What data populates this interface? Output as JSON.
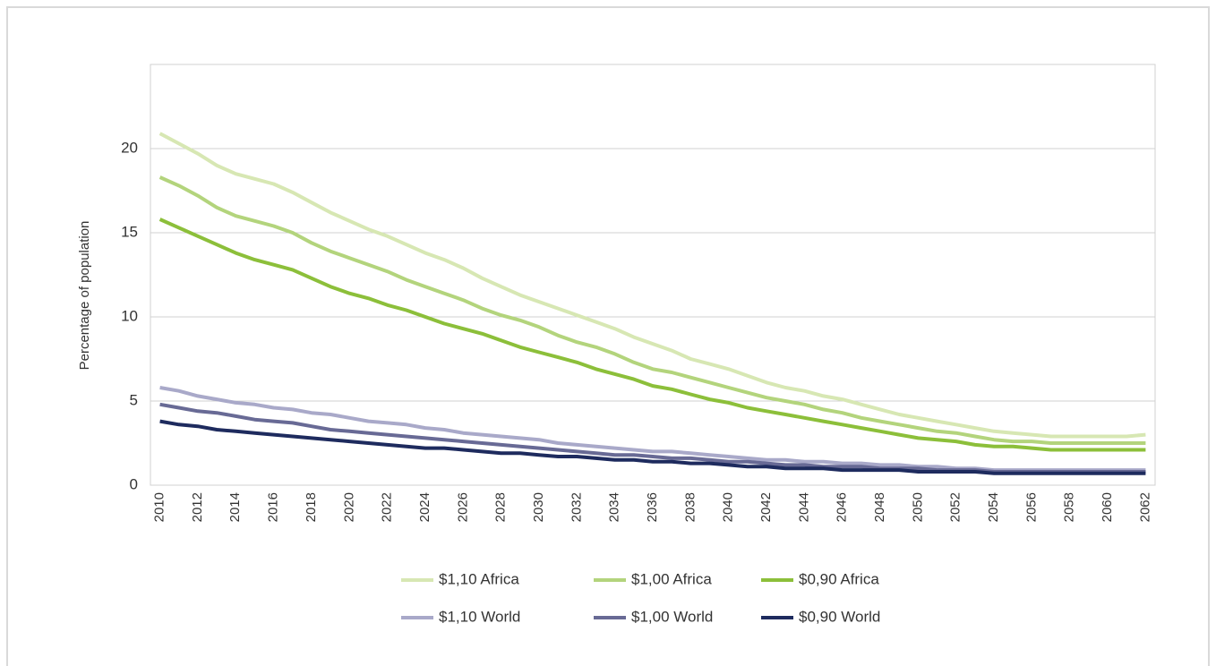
{
  "chart_data": {
    "type": "line",
    "y_label": "Percentage of population",
    "x": [
      2010,
      2011,
      2012,
      2013,
      2014,
      2015,
      2016,
      2017,
      2018,
      2019,
      2020,
      2021,
      2022,
      2023,
      2024,
      2025,
      2026,
      2027,
      2028,
      2029,
      2030,
      2031,
      2032,
      2033,
      2034,
      2035,
      2036,
      2037,
      2038,
      2039,
      2040,
      2041,
      2042,
      2043,
      2044,
      2045,
      2046,
      2047,
      2048,
      2049,
      2050,
      2051,
      2052,
      2053,
      2054,
      2055,
      2056,
      2057,
      2058,
      2059,
      2060,
      2061,
      2062
    ],
    "xlim": [
      2009.5,
      2062.5
    ],
    "xticks": [
      2010,
      2012,
      2014,
      2016,
      2018,
      2020,
      2022,
      2024,
      2026,
      2028,
      2030,
      2032,
      2034,
      2036,
      2038,
      2040,
      2042,
      2044,
      2046,
      2048,
      2050,
      2052,
      2054,
      2056,
      2058,
      2060,
      2062
    ],
    "ylim": [
      0,
      25
    ],
    "yticks": [
      0,
      5,
      10,
      15,
      20
    ],
    "grid": true,
    "legend": "bottom",
    "series": [
      {
        "name": "$1,10 Africa",
        "color": "#d7e7b3",
        "values": [
          20.9,
          20.3,
          19.7,
          19.0,
          18.5,
          18.2,
          17.9,
          17.4,
          16.8,
          16.2,
          15.7,
          15.2,
          14.8,
          14.3,
          13.8,
          13.4,
          12.9,
          12.3,
          11.8,
          11.3,
          10.9,
          10.5,
          10.1,
          9.7,
          9.3,
          8.8,
          8.4,
          8.0,
          7.5,
          7.2,
          6.9,
          6.5,
          6.1,
          5.8,
          5.6,
          5.3,
          5.1,
          4.8,
          4.5,
          4.2,
          4.0,
          3.8,
          3.6,
          3.4,
          3.2,
          3.1,
          3.0,
          2.9,
          2.9,
          2.9,
          2.9,
          2.9,
          3.0
        ]
      },
      {
        "name": "$1,00 Africa",
        "color": "#b3d47c",
        "values": [
          18.3,
          17.8,
          17.2,
          16.5,
          16.0,
          15.7,
          15.4,
          15.0,
          14.4,
          13.9,
          13.5,
          13.1,
          12.7,
          12.2,
          11.8,
          11.4,
          11.0,
          10.5,
          10.1,
          9.8,
          9.4,
          8.9,
          8.5,
          8.2,
          7.8,
          7.3,
          6.9,
          6.7,
          6.4,
          6.1,
          5.8,
          5.5,
          5.2,
          5.0,
          4.8,
          4.5,
          4.3,
          4.0,
          3.8,
          3.6,
          3.4,
          3.2,
          3.1,
          2.9,
          2.7,
          2.6,
          2.6,
          2.5,
          2.5,
          2.5,
          2.5,
          2.5,
          2.5
        ]
      },
      {
        "name": "$0,90 Africa",
        "color": "#8cbf3a",
        "values": [
          15.8,
          15.3,
          14.8,
          14.3,
          13.8,
          13.4,
          13.1,
          12.8,
          12.3,
          11.8,
          11.4,
          11.1,
          10.7,
          10.4,
          10.0,
          9.6,
          9.3,
          9.0,
          8.6,
          8.2,
          7.9,
          7.6,
          7.3,
          6.9,
          6.6,
          6.3,
          5.9,
          5.7,
          5.4,
          5.1,
          4.9,
          4.6,
          4.4,
          4.2,
          4.0,
          3.8,
          3.6,
          3.4,
          3.2,
          3.0,
          2.8,
          2.7,
          2.6,
          2.4,
          2.3,
          2.3,
          2.2,
          2.1,
          2.1,
          2.1,
          2.1,
          2.1,
          2.1
        ]
      },
      {
        "name": "$1,10 World",
        "color": "#a9a9c9",
        "values": [
          5.8,
          5.6,
          5.3,
          5.1,
          4.9,
          4.8,
          4.6,
          4.5,
          4.3,
          4.2,
          4.0,
          3.8,
          3.7,
          3.6,
          3.4,
          3.3,
          3.1,
          3.0,
          2.9,
          2.8,
          2.7,
          2.5,
          2.4,
          2.3,
          2.2,
          2.1,
          2.0,
          2.0,
          1.9,
          1.8,
          1.7,
          1.6,
          1.5,
          1.5,
          1.4,
          1.4,
          1.3,
          1.3,
          1.2,
          1.2,
          1.1,
          1.1,
          1.0,
          1.0,
          0.9,
          0.9,
          0.9,
          0.9,
          0.9,
          0.9,
          0.9,
          0.9,
          0.9
        ]
      },
      {
        "name": "$1,00 World",
        "color": "#686a95",
        "values": [
          4.8,
          4.6,
          4.4,
          4.3,
          4.1,
          3.9,
          3.8,
          3.7,
          3.5,
          3.3,
          3.2,
          3.1,
          3.0,
          2.9,
          2.8,
          2.7,
          2.6,
          2.5,
          2.4,
          2.3,
          2.2,
          2.1,
          2.0,
          1.9,
          1.8,
          1.8,
          1.7,
          1.6,
          1.6,
          1.5,
          1.4,
          1.4,
          1.3,
          1.2,
          1.2,
          1.1,
          1.1,
          1.1,
          1.0,
          1.0,
          1.0,
          0.9,
          0.9,
          0.9,
          0.8,
          0.8,
          0.8,
          0.8,
          0.8,
          0.8,
          0.8,
          0.8,
          0.8
        ]
      },
      {
        "name": "$0,90 World",
        "color": "#1e2b5e",
        "values": [
          3.8,
          3.6,
          3.5,
          3.3,
          3.2,
          3.1,
          3.0,
          2.9,
          2.8,
          2.7,
          2.6,
          2.5,
          2.4,
          2.3,
          2.2,
          2.2,
          2.1,
          2.0,
          1.9,
          1.9,
          1.8,
          1.7,
          1.7,
          1.6,
          1.5,
          1.5,
          1.4,
          1.4,
          1.3,
          1.3,
          1.2,
          1.1,
          1.1,
          1.0,
          1.0,
          1.0,
          0.9,
          0.9,
          0.9,
          0.9,
          0.8,
          0.8,
          0.8,
          0.8,
          0.7,
          0.7,
          0.7,
          0.7,
          0.7,
          0.7,
          0.7,
          0.7,
          0.7
        ]
      }
    ]
  }
}
